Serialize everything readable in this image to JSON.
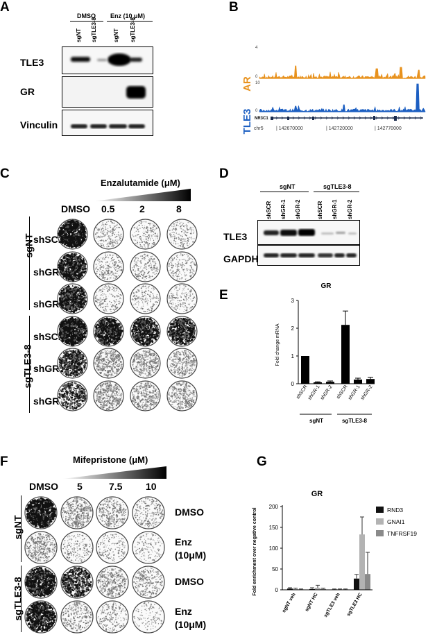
{
  "panels": {
    "A": "A",
    "B": "B",
    "C": "C",
    "D": "D",
    "E": "E",
    "F": "F",
    "G": "G"
  },
  "panelA": {
    "groups": [
      "DMSO",
      "Enz (10 μM)"
    ],
    "lanes": [
      "sgNT",
      "sgTLE3-8",
      "sgNT",
      "sgTLE3-8"
    ],
    "rows": [
      "TLE3",
      "GR",
      "Vinculin"
    ]
  },
  "panelB": {
    "tracks": [
      {
        "name": "AR",
        "scale_max": "4",
        "scale_min": "0",
        "color": "#e8921e"
      },
      {
        "name": "TLE3",
        "scale_max": "10",
        "scale_min": "0",
        "color": "#1c5fc2"
      }
    ],
    "gene": "NR3C1",
    "chrom": "chr5",
    "coords": [
      "| 142670000",
      "| 142720000",
      "| 142770000"
    ]
  },
  "panelC": {
    "treatment": "Enzalutamide (μM)",
    "columns": [
      "DMSO",
      "0.5",
      "2",
      "8"
    ],
    "rows": [
      "shSCR",
      "shGR-1",
      "shGR-2",
      "shSCR",
      "shGR-1",
      "shGR-2"
    ],
    "groups": [
      "sgNT",
      "sgTLE3-8"
    ],
    "density": [
      [
        0.85,
        0.12,
        0.1,
        0.08
      ],
      [
        0.75,
        0.14,
        0.12,
        0.1
      ],
      [
        0.7,
        0.1,
        0.08,
        0.08
      ],
      [
        0.85,
        0.75,
        0.7,
        0.65
      ],
      [
        0.6,
        0.35,
        0.3,
        0.25
      ],
      [
        0.45,
        0.35,
        0.3,
        0.28
      ]
    ]
  },
  "panelD": {
    "groups": [
      "sgNT",
      "sgTLE3-8"
    ],
    "lanes": [
      "shSCR",
      "shGR-1",
      "shGR-2",
      "shSCR",
      "shGR-1",
      "shGR-2"
    ],
    "rows": [
      "TLE3",
      "GAPDH"
    ]
  },
  "panelE": {
    "chart_data": {
      "type": "bar",
      "title": "GR",
      "ylabel": "Fold change mRNA",
      "ylim": [
        0,
        3
      ],
      "yticks": [
        "0",
        "1",
        "2",
        "3"
      ],
      "categories": [
        "shSCR",
        "shGR-1",
        "shGR-2",
        "shSCR",
        "shGR-1",
        "shGR-2"
      ],
      "values": [
        1.0,
        0.05,
        0.07,
        2.12,
        0.15,
        0.17
      ],
      "errors": [
        0.0,
        0.02,
        0.03,
        0.5,
        0.05,
        0.06
      ],
      "groups": [
        "sgNT",
        "sgTLE3-8"
      ]
    }
  },
  "panelF": {
    "treatment": "Mifepristone (μM)",
    "columns": [
      "DMSO",
      "5",
      "7.5",
      "10"
    ],
    "rowLabels": [
      "DMSO",
      "Enz\n(10μM)",
      "DMSO",
      "Enz\n(10μM)"
    ],
    "groups": [
      "sgNT",
      "sgTLE3-8"
    ],
    "density": [
      [
        0.85,
        0.35,
        0.25,
        0.15
      ],
      [
        0.3,
        0.1,
        0.07,
        0.05
      ],
      [
        0.8,
        0.6,
        0.3,
        0.2
      ],
      [
        0.8,
        0.2,
        0.12,
        0.02
      ]
    ]
  },
  "panelG": {
    "chart_data": {
      "type": "bar",
      "title": "GR",
      "ylabel": "Fold enrichment over negative control",
      "ylim": [
        0,
        200
      ],
      "yticks": [
        "0",
        "50",
        "100",
        "150",
        "200"
      ],
      "categories": [
        "sgNT veh",
        "sgNT HC",
        "sgTLE3 veh",
        "sgTLE3 HC"
      ],
      "series": [
        {
          "name": "RND3",
          "color": "#111111",
          "values": [
            3,
            2,
            1,
            27
          ],
          "errors": [
            2,
            3,
            1,
            10
          ]
        },
        {
          "name": "GNAI1",
          "color": "#b3b3b3",
          "values": [
            2,
            5,
            1,
            133
          ],
          "errors": [
            2,
            6,
            1,
            42
          ]
        },
        {
          "name": "TNFRSF19",
          "color": "#8a8a8a",
          "values": [
            1,
            2,
            1,
            38
          ],
          "errors": [
            1,
            2,
            1,
            52
          ]
        }
      ]
    }
  }
}
